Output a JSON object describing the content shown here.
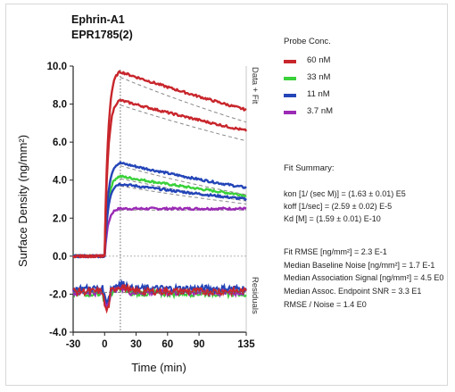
{
  "chart_data": {
    "type": "line",
    "title": "Ephrin-A1",
    "subtitle": "EPR1785(2)",
    "xlabel": "Time (min)",
    "ylabel": "Surface Density (ng/mm²)",
    "xlim": [
      -30,
      135
    ],
    "ylim": [
      -4.0,
      10.0
    ],
    "x_ticks": [
      "-30",
      "0",
      "30",
      "60",
      "90",
      "135"
    ],
    "x_tick_values": [
      -30,
      0,
      30,
      60,
      90,
      135
    ],
    "y_ticks": [
      "10.0",
      "8.0",
      "6.0",
      "4.0",
      "2.0",
      "0.0",
      "-2.0",
      "-4.0"
    ],
    "y_tick_values": [
      10,
      8,
      6,
      4,
      2,
      0,
      -2,
      -4
    ],
    "right_label_top": "Data + Fit",
    "right_label_bottom": "Residuals",
    "injection_end_time": 15,
    "legend_placement": "right",
    "series": [
      {
        "name": "60 nM",
        "color": "#c8262c",
        "peak": [
          9.7,
          8.2
        ],
        "end": [
          7.7,
          6.6
        ]
      },
      {
        "name": "33 nM",
        "color": "#3ad13a",
        "peak": [
          4.2
        ],
        "end": [
          3.2
        ]
      },
      {
        "name": "11 nM",
        "color": "#2445b8",
        "peak": [
          4.9,
          3.8
        ],
        "end": [
          3.6,
          3.0
        ]
      },
      {
        "name": "3.7 nM",
        "color": "#9b2ab5",
        "peak": [
          2.5
        ],
        "end": [
          2.5
        ]
      }
    ],
    "residual_baseline": -1.9,
    "residual_series": [
      {
        "color": "#3ad13a",
        "level": -1.95
      },
      {
        "color": "#9b2ab5",
        "level": -1.9
      },
      {
        "color": "#2445b8",
        "level": -1.7
      },
      {
        "color": "#c8262c",
        "level": -1.85
      }
    ]
  },
  "legend": {
    "title": "Probe Conc."
  },
  "fit_summary": {
    "title": "Fit Summary:",
    "lines": [
      "kon  [1/ (sec M)]  =  (1.63 ± 0.01) E5",
      "koff  [1/sec]  =  (2.59 ± 0.02) E-5",
      "Kd  [M]  =  (1.59 ± 0.01) E-10"
    ],
    "stats": [
      "Fit RMSE [ng/mm²]  =  2.3 E-1",
      "Median Baseline Noise [ng/mm²]  =  1.7 E-1",
      "Median Association Signal [ng/mm²]  =  4.5 E0",
      "Median Assoc. Endpoint SNR  =  3.3 E1",
      "RMSE / Noise  =  1.4 E0"
    ]
  }
}
